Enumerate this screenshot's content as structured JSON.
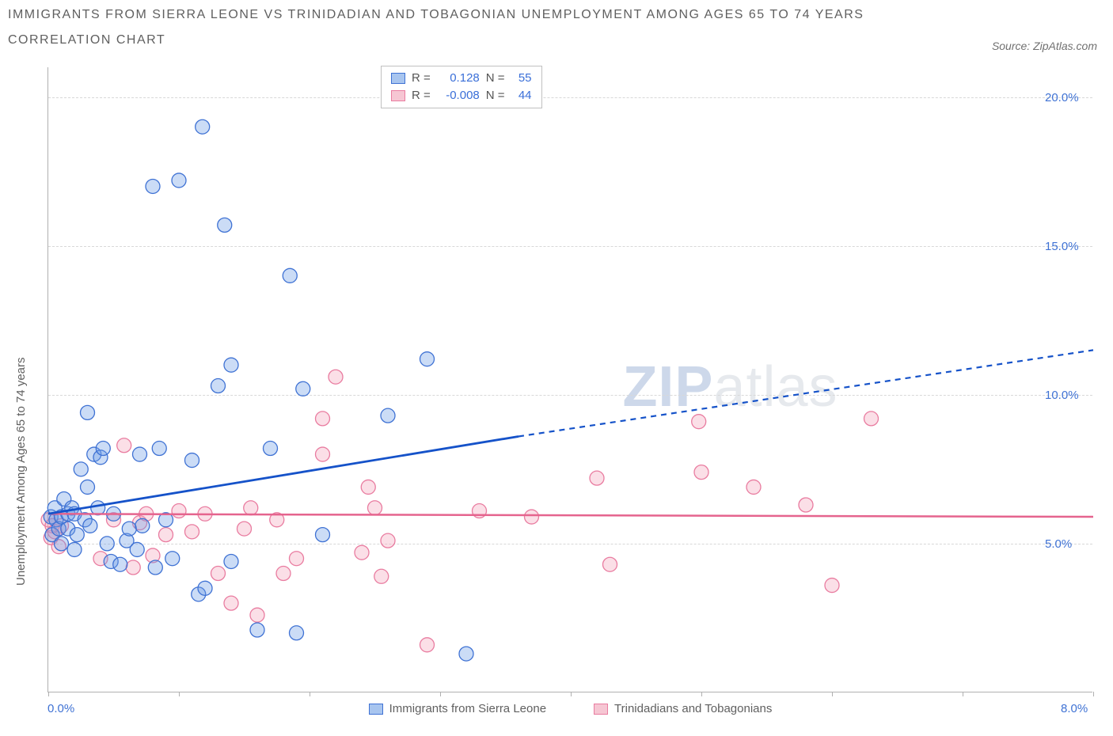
{
  "title_line1": "IMMIGRANTS FROM SIERRA LEONE VS TRINIDADIAN AND TOBAGONIAN UNEMPLOYMENT AMONG AGES 65 TO 74 YEARS",
  "title_line2": "CORRELATION CHART",
  "source_label": "Source: ZipAtlas.com",
  "y_axis_label": "Unemployment Among Ages 65 to 74 years",
  "watermark": {
    "zip": "ZIP",
    "atlas": "atlas"
  },
  "legend_rn": {
    "row1": {
      "swatch_fill": "#a8c5ef",
      "swatch_border": "#3f72d4",
      "r_label": "R =",
      "r_val": "0.128",
      "n_label": "N =",
      "n_val": "55"
    },
    "row2": {
      "swatch_fill": "#f6c6d3",
      "swatch_border": "#e97ca0",
      "r_label": "R =",
      "r_val": "-0.008",
      "n_label": "N =",
      "n_val": "44"
    }
  },
  "bottom_legend": {
    "series1": {
      "label": "Immigrants from Sierra Leone",
      "swatch_fill": "#a8c5ef",
      "swatch_border": "#3f72d4"
    },
    "series2": {
      "label": "Trinidadians and Tobagonians",
      "swatch_fill": "#f6c6d3",
      "swatch_border": "#e97ca0"
    }
  },
  "chart": {
    "type": "scatter",
    "xlim": [
      0,
      8
    ],
    "ylim": [
      0,
      21
    ],
    "y_ticks": [
      5,
      10,
      15,
      20
    ],
    "y_tick_labels": [
      "5.0%",
      "10.0%",
      "15.0%",
      "20.0%"
    ],
    "x_ticks": [
      0,
      1,
      2,
      3,
      4,
      5,
      6,
      7,
      8
    ],
    "x_tick_labels_shown": {
      "0": "0.0%",
      "8": "8.0%"
    },
    "grid_color": "#d8d8d8",
    "background_color": "#ffffff",
    "axis_color": "#b0b0b0",
    "marker_radius": 9,
    "marker_stroke_width": 1.3,
    "marker_fill_opacity": 0.35,
    "series": {
      "blue": {
        "fill": "#6b9ae4",
        "stroke": "#3f72d4",
        "line_color": "#1552c9",
        "trend": {
          "x1": 0,
          "y1": 6.0,
          "x2_solid": 3.6,
          "y2_solid": 8.6,
          "x2": 8,
          "y2": 11.5
        },
        "points": [
          [
            0.02,
            5.9
          ],
          [
            0.03,
            5.3
          ],
          [
            0.05,
            6.2
          ],
          [
            0.06,
            5.8
          ],
          [
            0.08,
            5.5
          ],
          [
            0.1,
            5.0
          ],
          [
            0.1,
            5.9
          ],
          [
            0.12,
            6.5
          ],
          [
            0.15,
            6.0
          ],
          [
            0.15,
            5.5
          ],
          [
            0.18,
            6.2
          ],
          [
            0.2,
            6.0
          ],
          [
            0.2,
            4.8
          ],
          [
            0.22,
            5.3
          ],
          [
            0.25,
            7.5
          ],
          [
            0.28,
            5.8
          ],
          [
            0.3,
            9.4
          ],
          [
            0.3,
            6.9
          ],
          [
            0.32,
            5.6
          ],
          [
            0.35,
            8.0
          ],
          [
            0.38,
            6.2
          ],
          [
            0.4,
            7.9
          ],
          [
            0.42,
            8.2
          ],
          [
            0.45,
            5.0
          ],
          [
            0.48,
            4.4
          ],
          [
            0.5,
            6.0
          ],
          [
            0.55,
            4.3
          ],
          [
            0.6,
            5.1
          ],
          [
            0.62,
            5.5
          ],
          [
            0.68,
            4.8
          ],
          [
            0.7,
            8.0
          ],
          [
            0.72,
            5.6
          ],
          [
            0.8,
            17.0
          ],
          [
            0.82,
            4.2
          ],
          [
            0.85,
            8.2
          ],
          [
            0.9,
            5.8
          ],
          [
            0.95,
            4.5
          ],
          [
            1.0,
            17.2
          ],
          [
            1.1,
            7.8
          ],
          [
            1.15,
            3.3
          ],
          [
            1.18,
            19.0
          ],
          [
            1.2,
            3.5
          ],
          [
            1.3,
            10.3
          ],
          [
            1.35,
            15.7
          ],
          [
            1.4,
            4.4
          ],
          [
            1.4,
            11.0
          ],
          [
            1.6,
            2.1
          ],
          [
            1.7,
            8.2
          ],
          [
            1.85,
            14.0
          ],
          [
            1.9,
            2.0
          ],
          [
            1.95,
            10.2
          ],
          [
            2.1,
            5.3
          ],
          [
            2.6,
            9.3
          ],
          [
            2.9,
            11.2
          ],
          [
            3.2,
            1.3
          ]
        ]
      },
      "pink": {
        "fill": "#f3a3b9",
        "stroke": "#e97ca0",
        "line_color": "#e5648e",
        "trend": {
          "x1": 0,
          "y1": 6.0,
          "x2": 8,
          "y2": 5.9
        },
        "points": [
          [
            0.0,
            5.8
          ],
          [
            0.02,
            5.2
          ],
          [
            0.03,
            5.6
          ],
          [
            0.05,
            5.4
          ],
          [
            0.08,
            4.9
          ],
          [
            0.1,
            5.6
          ],
          [
            0.4,
            4.5
          ],
          [
            0.5,
            5.8
          ],
          [
            0.58,
            8.3
          ],
          [
            0.65,
            4.2
          ],
          [
            0.7,
            5.7
          ],
          [
            0.75,
            6.0
          ],
          [
            0.8,
            4.6
          ],
          [
            0.9,
            5.3
          ],
          [
            1.0,
            6.1
          ],
          [
            1.1,
            5.4
          ],
          [
            1.2,
            6.0
          ],
          [
            1.3,
            4.0
          ],
          [
            1.4,
            3.0
          ],
          [
            1.5,
            5.5
          ],
          [
            1.55,
            6.2
          ],
          [
            1.6,
            2.6
          ],
          [
            1.75,
            5.8
          ],
          [
            1.8,
            4.0
          ],
          [
            1.9,
            4.5
          ],
          [
            2.1,
            9.2
          ],
          [
            2.1,
            8.0
          ],
          [
            2.2,
            10.6
          ],
          [
            2.4,
            4.7
          ],
          [
            2.45,
            6.9
          ],
          [
            2.5,
            6.2
          ],
          [
            2.55,
            3.9
          ],
          [
            2.6,
            5.1
          ],
          [
            2.9,
            1.6
          ],
          [
            3.3,
            6.1
          ],
          [
            3.7,
            5.9
          ],
          [
            4.2,
            7.2
          ],
          [
            4.3,
            4.3
          ],
          [
            4.98,
            9.1
          ],
          [
            5.0,
            7.4
          ],
          [
            5.4,
            6.9
          ],
          [
            5.8,
            6.3
          ],
          [
            6.0,
            3.6
          ],
          [
            6.3,
            9.2
          ]
        ]
      }
    }
  }
}
